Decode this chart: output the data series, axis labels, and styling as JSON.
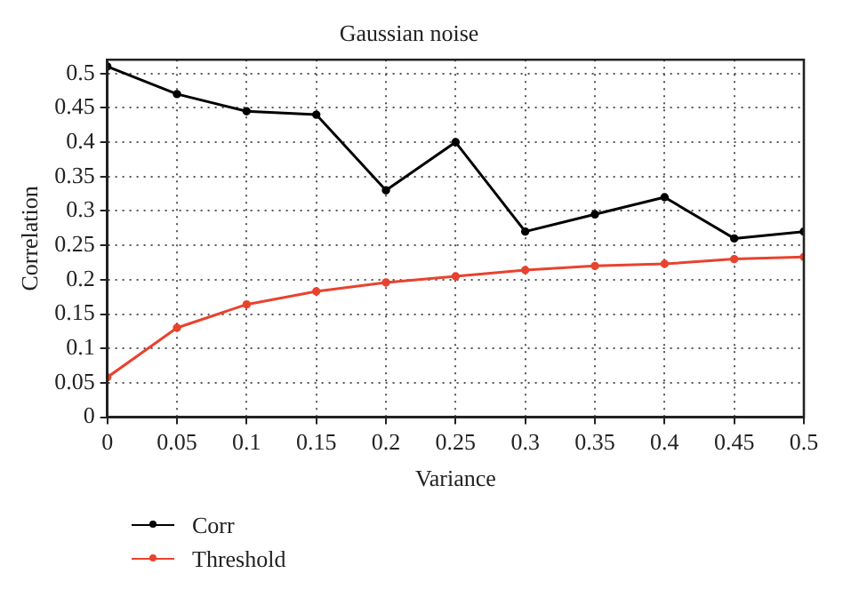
{
  "chart_data": {
    "type": "line",
    "title": "Gaussian noise",
    "xlabel": "Variance",
    "ylabel": "Correlation",
    "x": [
      0,
      0.05,
      0.1,
      0.15,
      0.2,
      0.25,
      0.3,
      0.35,
      0.4,
      0.45,
      0.5
    ],
    "series": [
      {
        "name": "Corr",
        "color": "#000000",
        "values": [
          0.51,
          0.47,
          0.445,
          0.44,
          0.33,
          0.4,
          0.27,
          0.295,
          0.32,
          0.26,
          0.27
        ]
      },
      {
        "name": "Threshold",
        "color": "#e8432e",
        "values": [
          0.058,
          0.13,
          0.164,
          0.183,
          0.196,
          0.205,
          0.214,
          0.22,
          0.223,
          0.23,
          0.233
        ]
      }
    ],
    "xlim": [
      0,
      0.5
    ],
    "xticks": [
      0,
      0.05,
      0.1,
      0.15,
      0.2,
      0.25,
      0.3,
      0.35,
      0.4,
      0.45,
      0.5
    ],
    "ylim": [
      0,
      0.52
    ],
    "yticks": [
      0,
      0.05,
      0.1,
      0.15,
      0.2,
      0.25,
      0.3,
      0.35,
      0.4,
      0.45,
      0.5
    ],
    "grid": true,
    "legend": "bottom left",
    "marker": "circle",
    "line_style": "solid"
  }
}
